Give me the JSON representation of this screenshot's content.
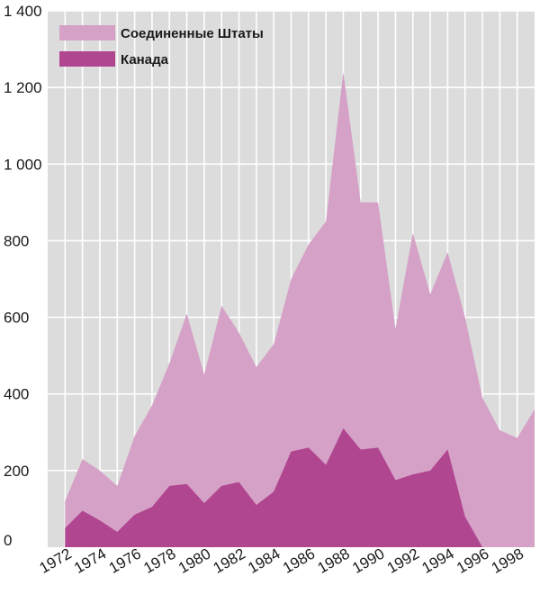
{
  "chart_data": {
    "type": "area",
    "stacked": false,
    "x": [
      1972,
      1973,
      1974,
      1975,
      1976,
      1977,
      1978,
      1979,
      1980,
      1981,
      1982,
      1983,
      1984,
      1985,
      1986,
      1987,
      1988,
      1989,
      1990,
      1991,
      1992,
      1993,
      1994,
      1995,
      1996,
      1997,
      1998,
      1999
    ],
    "series": [
      {
        "name": "Соединенные Штаты",
        "color": "#d5a1c7",
        "values": [
          120,
          230,
          200,
          160,
          290,
          370,
          480,
          610,
          450,
          630,
          560,
          470,
          530,
          700,
          790,
          850,
          1240,
          900,
          900,
          570,
          820,
          660,
          770,
          600,
          390,
          305,
          285,
          360
        ]
      },
      {
        "name": "Канада",
        "color": "#b0468f",
        "values": [
          50,
          95,
          70,
          40,
          85,
          105,
          160,
          165,
          115,
          160,
          170,
          110,
          145,
          250,
          260,
          215,
          310,
          255,
          260,
          175,
          190,
          200,
          255,
          80,
          0,
          0,
          0,
          0
        ]
      }
    ],
    "ylim": [
      0,
      1400
    ],
    "xlim": [
      1971,
      1999
    ],
    "y_ticks": [
      0,
      200,
      400,
      600,
      800,
      1000,
      1200,
      1400
    ],
    "y_tick_labels": [
      "0",
      "200",
      "400",
      "600",
      "800",
      "1 000",
      "1 200",
      "1 400"
    ],
    "x_ticks": [
      1972,
      1974,
      1976,
      1978,
      1980,
      1982,
      1984,
      1986,
      1988,
      1990,
      1992,
      1994,
      1996,
      1998
    ],
    "x_tick_labels": [
      "1972",
      "1974",
      "1976",
      "1978",
      "1980",
      "1982",
      "1984",
      "1986",
      "1988",
      "1990",
      "1992",
      "1994",
      "1996",
      "1998"
    ],
    "grid": true,
    "background_color": "#dcdcdc",
    "grid_color": "#ffffff",
    "legend_position": "top-left"
  }
}
